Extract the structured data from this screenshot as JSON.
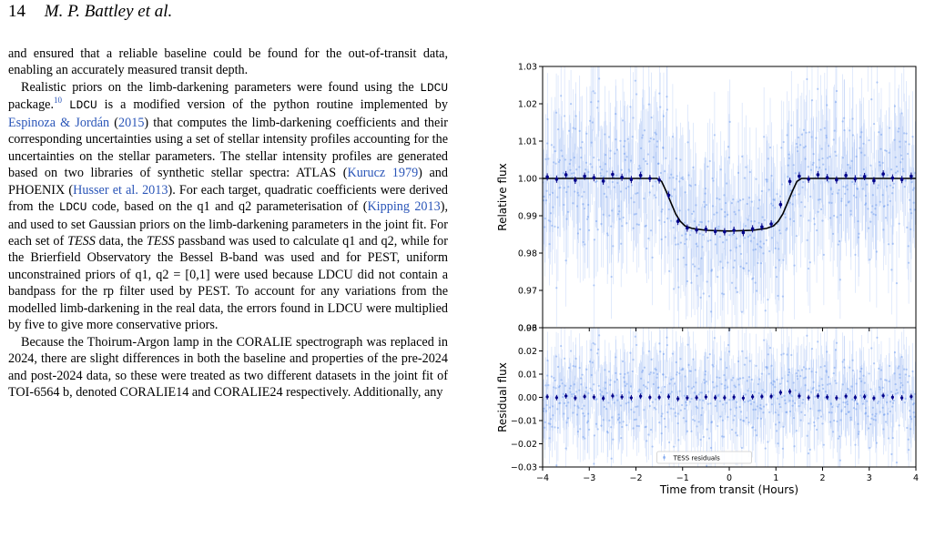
{
  "header": {
    "page_number": "14",
    "authors": "M. P. Battley et al."
  },
  "text": {
    "p1": [
      {
        "t": "and ensured that a reliable baseline could be found for the out-of-transit data, enabling an accurately measured transit depth."
      }
    ],
    "p2": [
      {
        "t": "Realistic priors on the limb-darkening parameters were found using the "
      },
      {
        "t": "LDCU",
        "s": "mono"
      },
      {
        "t": " package."
      },
      {
        "t": "10",
        "s": "sup"
      },
      {
        "t": " "
      },
      {
        "t": "LDCU",
        "s": "mono"
      },
      {
        "t": " is a modified version of the python routine implemented by "
      },
      {
        "t": "Espinoza & Jordán",
        "s": "link"
      },
      {
        "t": " ("
      },
      {
        "t": "2015",
        "s": "link"
      },
      {
        "t": ") that computes the limb-darkening coefficients and their corresponding uncertainties using a set of stellar intensity profiles accounting for the uncertainties on the stellar parameters. The stellar intensity profiles are generated based on two libraries of synthetic stellar spectra: ATLAS ("
      },
      {
        "t": "Kurucz 1979",
        "s": "link"
      },
      {
        "t": ") and PHOENIX ("
      },
      {
        "t": "Husser et al. 2013",
        "s": "link"
      },
      {
        "t": "). For each target, quadratic coefficients were derived from the "
      },
      {
        "t": "LDCU",
        "s": "mono"
      },
      {
        "t": " code, based on the q1 and q2 parameterisation of ("
      },
      {
        "t": "Kipping 2013",
        "s": "link"
      },
      {
        "t": "), and used to set Gaussian priors on the limb-darkening parameters in the joint fit. For each set of "
      },
      {
        "t": "TESS",
        "s": "it"
      },
      {
        "t": " data, the "
      },
      {
        "t": "TESS",
        "s": "it"
      },
      {
        "t": " passband was used to calculate q1 and q2, while for the Brierfield Observatory the Bessel B-band was used and for PEST, uniform unconstrained priors of q1, q2 = [0,1] were used because LDCU did not contain a bandpass for the rp filter used by PEST. To account for any variations from the modelled limb-darkening in the real data, the errors found in LDCU were multiplied by five to give more conservative priors."
      }
    ],
    "p3": [
      {
        "t": "Because the Thoirum-Argon lamp in the CORALIE spectrograph was replaced in 2024, there are slight differences in both the baseline and properties of the pre-2024 and post-2024 data, so these were treated as two different datasets in the joint fit of TOI-6564 b, denoted CORALIE14 and CORALIE24 respectively. Additionally, any"
      }
    ]
  },
  "chart_data": [
    {
      "type": "scatter",
      "panel": "top",
      "title": "",
      "xlabel": "",
      "ylabel": "Relative flux",
      "xlim": [
        -4,
        4
      ],
      "ylim": [
        0.96,
        1.03
      ],
      "yticks": [
        "0.96",
        "0.97",
        "0.98",
        "0.99",
        "1.00",
        "1.01",
        "1.02",
        "1.03"
      ],
      "grid": false,
      "series": [
        {
          "role": "raw-points",
          "color": "#6495ed",
          "note_scatter_sigma": 0.011
        },
        {
          "role": "binned",
          "color": "#00008b",
          "x": [
            -3.9,
            -3.7,
            -3.5,
            -3.3,
            -3.1,
            -2.9,
            -2.7,
            -2.5,
            -2.3,
            -2.1,
            -1.9,
            -1.7,
            -1.5,
            -1.3,
            -1.1,
            -0.9,
            -0.7,
            -0.5,
            -0.3,
            -0.1,
            0.1,
            0.3,
            0.5,
            0.7,
            0.9,
            1.1,
            1.3,
            1.5,
            1.7,
            1.9,
            2.1,
            2.3,
            2.5,
            2.7,
            2.9,
            3.1,
            3.3,
            3.5,
            3.7,
            3.9
          ],
          "y": [
            1.0004,
            0.9998,
            1.001,
            0.9995,
            1.0006,
            1.0002,
            0.9993,
            1.0011,
            1.0003,
            0.9997,
            1.0008,
            1.0,
            0.9996,
            0.9955,
            0.9885,
            0.9867,
            0.9862,
            0.9864,
            0.9858,
            0.9857,
            0.9861,
            0.9855,
            0.9865,
            0.987,
            0.9878,
            0.993,
            0.9992,
            1.0006,
            0.9998,
            1.001,
            1.0002,
            0.9996,
            1.0008,
            0.9999,
            1.0005,
            0.9994,
            1.0012,
            1.0001,
            0.9997,
            1.0006
          ]
        },
        {
          "role": "model",
          "color": "#000000",
          "x": [
            -4,
            -1.55,
            -1.45,
            -1.35,
            -1.25,
            -1.15,
            -1.05,
            -0.95,
            -0.8,
            -0.5,
            0,
            0.5,
            0.8,
            0.95,
            1.05,
            1.15,
            1.25,
            1.35,
            1.45,
            1.55,
            4
          ],
          "y": [
            1.0,
            1.0,
            0.9992,
            0.9965,
            0.9935,
            0.9905,
            0.9885,
            0.9873,
            0.9866,
            0.9861,
            0.9859,
            0.9861,
            0.9866,
            0.9873,
            0.9885,
            0.9905,
            0.9935,
            0.9965,
            0.9992,
            1.0,
            1.0
          ]
        }
      ]
    },
    {
      "type": "scatter",
      "panel": "bottom",
      "xlabel": "Time from transit (Hours)",
      "ylabel": "Residual flux",
      "xlim": [
        -4,
        4
      ],
      "ylim": [
        -0.03,
        0.03
      ],
      "xticks": [
        "−4",
        "−3",
        "−2",
        "−1",
        "0",
        "1",
        "2",
        "3",
        "4"
      ],
      "yticks": [
        "−0.03",
        "−0.02",
        "−0.01",
        "0.00",
        "0.01",
        "0.02",
        "0.03"
      ],
      "grid": false,
      "legend": {
        "label": "TESS residuals",
        "placement": "lower-center"
      },
      "series": [
        {
          "role": "raw-residuals",
          "name": "TESS residuals",
          "color": "#6495ed",
          "note_scatter_sigma": 0.011
        },
        {
          "role": "binned-residuals",
          "color": "#00008b",
          "y_center": 0.0
        }
      ]
    }
  ]
}
